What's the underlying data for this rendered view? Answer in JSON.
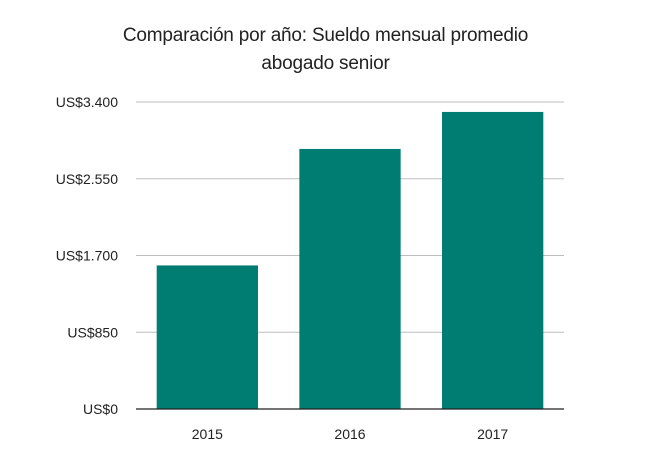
{
  "chart_data": {
    "type": "bar",
    "title": [
      "Comparación por año: Sueldo mensual promedio",
      "abogado senior"
    ],
    "categories": [
      "2015",
      "2016",
      "2017"
    ],
    "values": [
      1590,
      2880,
      3290
    ],
    "ylim": [
      0,
      3400
    ],
    "yticks": [
      0,
      850,
      1700,
      2550,
      3400
    ],
    "ytick_labels": [
      "US$0",
      "US$850",
      "US$1.700",
      "US$2.550",
      "US$3.400"
    ],
    "xlabel": "",
    "ylabel": "",
    "grid": true,
    "bar_color": "#007d72",
    "grid_color": "#bdbdbd",
    "axis_color": "#222222"
  }
}
